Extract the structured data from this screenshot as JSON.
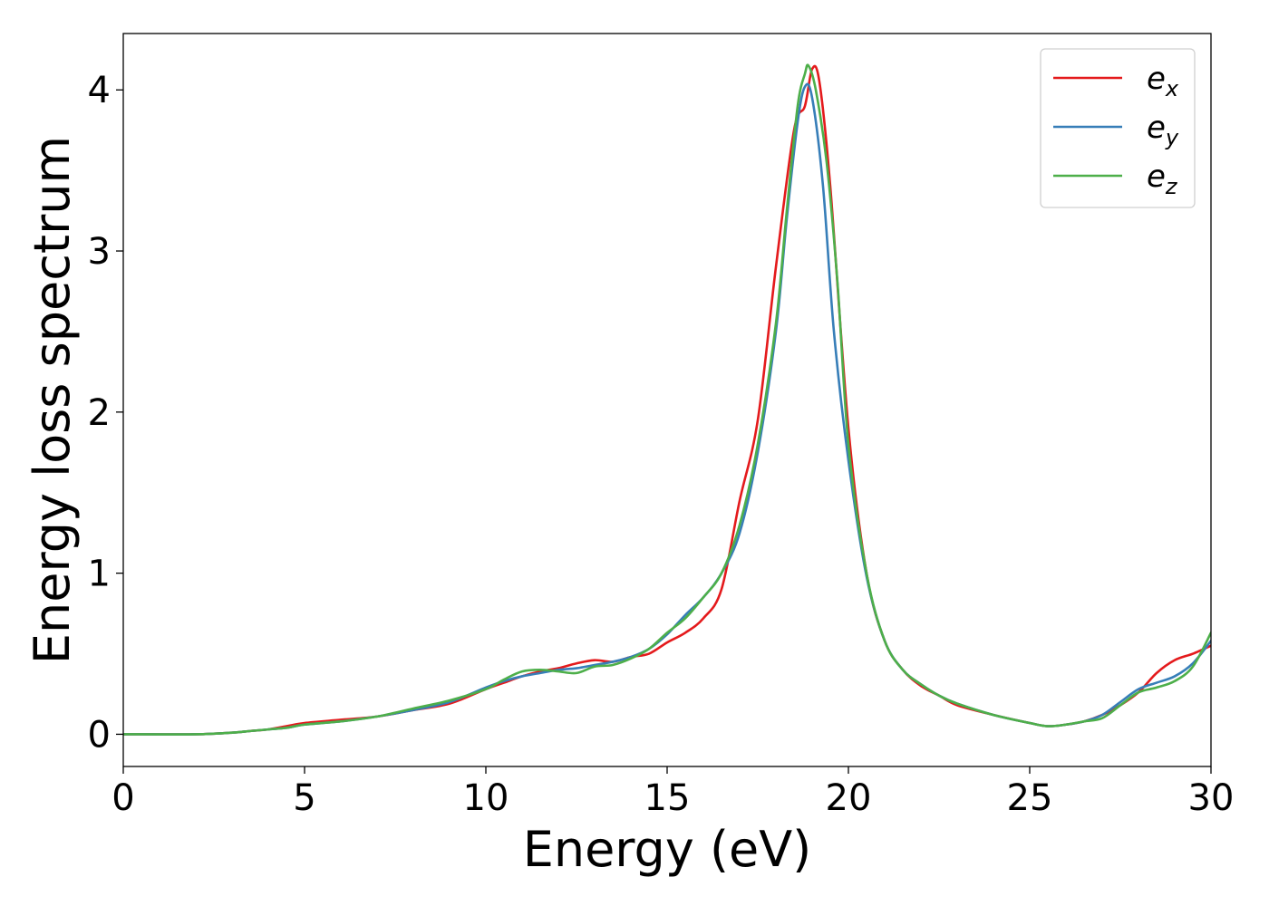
{
  "chart_data": {
    "type": "line",
    "title": "",
    "xlabel": "Energy (eV)",
    "ylabel": "Energy loss spectrum",
    "xlim": [
      0,
      30
    ],
    "ylim": [
      -0.2,
      4.35
    ],
    "xticks": [
      "0",
      "5",
      "10",
      "15",
      "20",
      "25",
      "30"
    ],
    "yticks": [
      "0",
      "1",
      "2",
      "3",
      "4"
    ],
    "grid": false,
    "legend_position": "top-right",
    "series": [
      {
        "name": "e_x",
        "label_main": "e",
        "label_sub": "x",
        "color": "#e41a1c",
        "x": [
          0,
          2,
          3,
          3.5,
          4,
          4.5,
          5,
          6,
          7,
          8,
          9,
          10,
          10.5,
          11,
          11.5,
          12,
          12.5,
          13,
          13.5,
          14,
          14.5,
          15,
          15.5,
          16,
          16.5,
          17,
          17.5,
          18,
          18.5,
          18.8,
          19.0,
          19.2,
          19.5,
          20,
          20.5,
          21,
          21.5,
          22,
          22.5,
          23,
          24,
          25,
          25.5,
          26,
          26.5,
          27,
          27.5,
          28,
          28.5,
          29,
          29.5,
          30
        ],
        "y": [
          0,
          0,
          0.01,
          0.02,
          0.03,
          0.05,
          0.07,
          0.09,
          0.11,
          0.15,
          0.19,
          0.28,
          0.32,
          0.36,
          0.39,
          0.41,
          0.44,
          0.46,
          0.45,
          0.48,
          0.5,
          0.57,
          0.63,
          0.72,
          0.9,
          1.45,
          1.95,
          2.9,
          3.75,
          3.9,
          4.13,
          4.05,
          3.4,
          1.9,
          1.0,
          0.58,
          0.4,
          0.3,
          0.24,
          0.18,
          0.12,
          0.07,
          0.05,
          0.06,
          0.08,
          0.12,
          0.18,
          0.26,
          0.38,
          0.46,
          0.5,
          0.55
        ]
      },
      {
        "name": "e_y",
        "label_main": "e",
        "label_sub": "y",
        "color": "#377eb8",
        "x": [
          0,
          2,
          3,
          3.5,
          4,
          4.5,
          5,
          6,
          7,
          8,
          9,
          10,
          10.5,
          11,
          11.5,
          12,
          12.5,
          13,
          13.5,
          14,
          14.5,
          15,
          15.5,
          16,
          16.5,
          17,
          17.5,
          18,
          18.3,
          18.6,
          18.8,
          19.0,
          19.3,
          19.6,
          20,
          20.5,
          21,
          21.5,
          22,
          22.5,
          23,
          24,
          25,
          25.5,
          26,
          26.5,
          27,
          27.5,
          28,
          28.5,
          29,
          29.5,
          30
        ],
        "y": [
          0,
          0,
          0.01,
          0.02,
          0.03,
          0.04,
          0.06,
          0.08,
          0.11,
          0.15,
          0.2,
          0.29,
          0.33,
          0.36,
          0.38,
          0.4,
          0.41,
          0.43,
          0.45,
          0.48,
          0.53,
          0.62,
          0.74,
          0.85,
          1.0,
          1.25,
          1.75,
          2.5,
          3.2,
          3.8,
          4.02,
          3.95,
          3.4,
          2.5,
          1.7,
          0.98,
          0.58,
          0.4,
          0.31,
          0.24,
          0.19,
          0.12,
          0.07,
          0.05,
          0.06,
          0.08,
          0.12,
          0.2,
          0.28,
          0.32,
          0.36,
          0.44,
          0.58
        ]
      },
      {
        "name": "e_z",
        "label_main": "e",
        "label_sub": "z",
        "color": "#4daf4a",
        "x": [
          0,
          2,
          3,
          3.5,
          4,
          4.5,
          5,
          6,
          7,
          8,
          9,
          10,
          10.5,
          11,
          11.5,
          12,
          12.5,
          13,
          13.5,
          14,
          14.5,
          15,
          15.5,
          16,
          16.5,
          17,
          17.5,
          18,
          18.3,
          18.6,
          18.8,
          18.9,
          19.1,
          19.4,
          19.7,
          20,
          20.5,
          21,
          21.5,
          22,
          22.5,
          23,
          24,
          25,
          25.5,
          26,
          26.5,
          27,
          27.5,
          28,
          28.5,
          29,
          29.5,
          30
        ],
        "y": [
          0,
          0,
          0.01,
          0.02,
          0.03,
          0.04,
          0.06,
          0.08,
          0.11,
          0.16,
          0.21,
          0.28,
          0.34,
          0.39,
          0.4,
          0.39,
          0.38,
          0.42,
          0.43,
          0.47,
          0.53,
          0.63,
          0.72,
          0.85,
          1.0,
          1.3,
          1.8,
          2.55,
          3.25,
          3.9,
          4.1,
          4.15,
          4.0,
          3.55,
          2.8,
          1.8,
          1.0,
          0.58,
          0.4,
          0.31,
          0.24,
          0.19,
          0.12,
          0.07,
          0.05,
          0.06,
          0.08,
          0.1,
          0.18,
          0.26,
          0.29,
          0.33,
          0.42,
          0.63
        ]
      }
    ]
  }
}
